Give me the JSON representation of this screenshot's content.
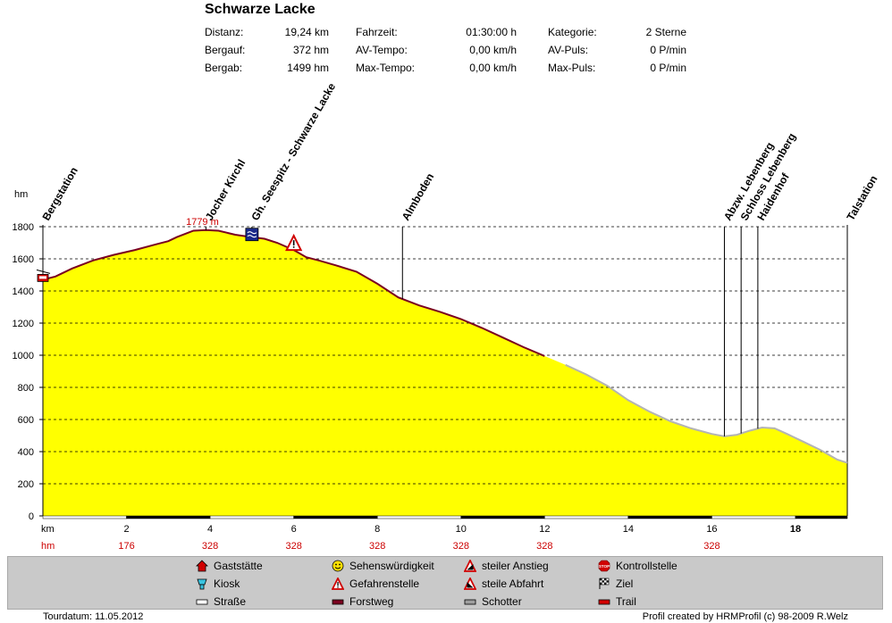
{
  "title": "Schwarze Lacke",
  "stats": [
    {
      "label": "Distanz:",
      "value": "19,24 km"
    },
    {
      "label": "Bergauf:",
      "value": "372 hm"
    },
    {
      "label": "Bergab:",
      "value": "1499 hm"
    },
    {
      "label": "Fahrzeit:",
      "value": "01:30:00 h"
    },
    {
      "label": "AV-Tempo:",
      "value": "0,00 km/h"
    },
    {
      "label": "Max-Tempo:",
      "value": "0,00 km/h"
    },
    {
      "label": "Kategorie:",
      "value": "2 Sterne"
    },
    {
      "label": "AV-Puls:",
      "value": "0 P/min"
    },
    {
      "label": "Max-Puls:",
      "value": "0 P/min"
    }
  ],
  "chart_data": {
    "type": "area",
    "ylabel": "hm",
    "xlabel": "km",
    "ylim": [
      0,
      1800
    ],
    "xlim": [
      0,
      19.24
    ],
    "yticks": [
      "0",
      "200",
      "400",
      "600",
      "800",
      "1000",
      "1200",
      "1400",
      "1600",
      "1800"
    ],
    "xticks": [
      "2",
      "4",
      "6",
      "8",
      "10",
      "12",
      "14",
      "16",
      "18"
    ],
    "x_bold_tick": "18",
    "grid": true,
    "max_label": "1779 m",
    "profile": {
      "x": [
        0,
        0.3,
        0.7,
        1.2,
        1.7,
        2.2,
        2.7,
        3.0,
        3.2,
        3.6,
        3.9,
        4.2,
        4.6,
        5.0,
        5.3,
        5.6,
        6.0,
        6.3,
        6.6,
        7.0,
        7.5,
        8.0,
        8.5,
        9.0,
        9.5,
        10.0,
        10.5,
        11.0,
        11.5,
        12.0,
        12.5,
        13.0,
        13.5,
        14.0,
        14.5,
        15.0,
        15.5,
        16.0,
        16.3,
        16.6,
        16.9,
        17.2,
        17.5,
        17.8,
        18.2,
        18.6,
        19.0,
        19.24
      ],
      "y": [
        1470,
        1490,
        1540,
        1590,
        1625,
        1655,
        1690,
        1710,
        1735,
        1775,
        1779,
        1775,
        1750,
        1735,
        1725,
        1700,
        1655,
        1610,
        1590,
        1560,
        1520,
        1445,
        1360,
        1310,
        1270,
        1225,
        1170,
        1110,
        1050,
        995,
        940,
        880,
        810,
        720,
        650,
        590,
        545,
        510,
        495,
        505,
        530,
        550,
        545,
        510,
        460,
        410,
        350,
        330
      ]
    },
    "surface": [
      {
        "from": 0,
        "to": 12.4,
        "type": "Forstweg"
      },
      {
        "from": 12.4,
        "to": 19.24,
        "type": "Schotter"
      }
    ],
    "waypoints": [
      {
        "name": "Bergstation",
        "km": 0
      },
      {
        "name": "Jocher Kirchl",
        "km": 3.9
      },
      {
        "name": "Gh. Seespitz - Schwarze Lacke",
        "km": 5.0
      },
      {
        "name": "Almboden",
        "km": 8.6
      },
      {
        "name": "Abzw. Lebenberg",
        "km": 16.3
      },
      {
        "name": "Schloss Lebenberg",
        "km": 16.7
      },
      {
        "name": "Haidenhof",
        "km": 17.1
      },
      {
        "name": "Talstation",
        "km": 19.24
      }
    ],
    "markers": [
      {
        "type": "seilbahn",
        "km": 0,
        "elev": 1470
      },
      {
        "type": "see",
        "km": 5.0,
        "elev": 1735
      },
      {
        "type": "gefahrenstelle",
        "km": 6.0,
        "elev": 1655
      }
    ],
    "hm_row": {
      "label": "hm",
      "values": [
        {
          "km": 2,
          "text": "176"
        },
        {
          "km": 4,
          "text": "328"
        },
        {
          "km": 6,
          "text": "328"
        },
        {
          "km": 8,
          "text": "328"
        },
        {
          "km": 10,
          "text": "328"
        },
        {
          "km": 12,
          "text": "328"
        },
        {
          "km": 16,
          "text": "328"
        }
      ]
    },
    "colors": {
      "fill": "#ffff00",
      "forstweg": "#7a0020",
      "schotter": "#b4b4b4",
      "label": "#cc0000"
    }
  },
  "legend": [
    {
      "icon": "gaststaette-icon",
      "label": "Gaststätte"
    },
    {
      "icon": "kiosk-icon",
      "label": "Kiosk"
    },
    {
      "icon": "strasse-icon",
      "label": "Straße"
    },
    {
      "icon": "sehenswuerdigkeit-icon",
      "label": "Sehenswürdigkeit"
    },
    {
      "icon": "gefahrenstelle-icon",
      "label": "Gefahrenstelle"
    },
    {
      "icon": "forstweg-icon",
      "label": "Forstweg"
    },
    {
      "icon": "steiler-anstieg-icon",
      "label": "steiler Anstieg"
    },
    {
      "icon": "steile-abfahrt-icon",
      "label": "steile Abfahrt"
    },
    {
      "icon": "schotter-icon",
      "label": "Schotter"
    },
    {
      "icon": "kontrollstelle-icon",
      "label": "Kontrollstelle"
    },
    {
      "icon": "ziel-icon",
      "label": "Ziel"
    },
    {
      "icon": "trail-icon",
      "label": "Trail"
    }
  ],
  "footer": {
    "left": "Tourdatum: 11.05.2012",
    "right": "Profil created by HRMProfil (c) 98-2009 R.Welz"
  }
}
